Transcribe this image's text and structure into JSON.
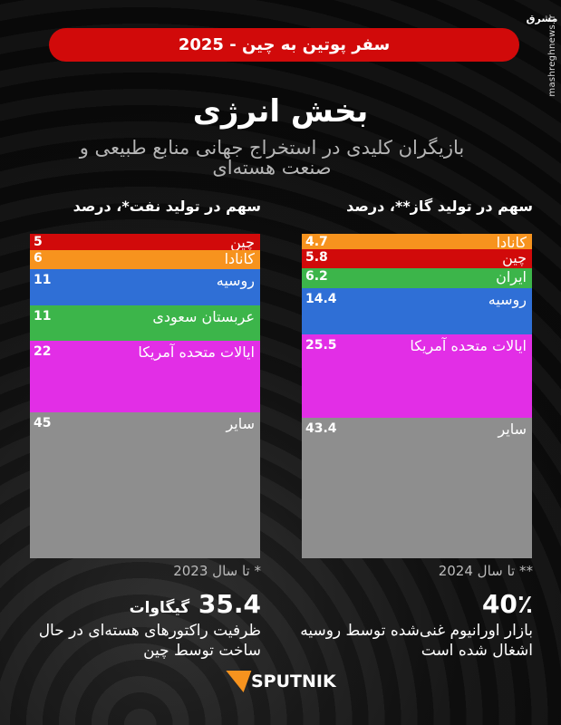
{
  "banner": "سفر پوتین به چین - 2025",
  "logo_text": "مشرق",
  "site": "mashreghnews.ir",
  "title": "بخش انرژی",
  "subtitle": "بازیگران کلیدی در استخراج جهانی منابع طبیعی و صنعت هسته‌ای",
  "chart_data": [
    {
      "type": "bar",
      "stacked": true,
      "title": "سهم در تولید نفت*، درصد",
      "unit": "%",
      "categories": [
        "چین",
        "کانادا",
        "روسیه",
        "عربستان سعودی",
        "ایالات متحده آمریکا",
        "سایر"
      ],
      "values": [
        5,
        6,
        11,
        11,
        22,
        45
      ],
      "colors": [
        "#d10a0a",
        "#f7931e",
        "#2f6fd6",
        "#3cb54a",
        "#e22ee6",
        "#8e8e8e"
      ],
      "footnote": "* تا سال 2023"
    },
    {
      "type": "bar",
      "stacked": true,
      "title": "سهم در تولید گاز**، درصد",
      "unit": "%",
      "categories": [
        "کانادا",
        "چین",
        "ایران",
        "روسیه",
        "ایالات متحده آمریکا",
        "سایر"
      ],
      "values": [
        4.7,
        5.8,
        6.2,
        14.4,
        25.5,
        43.4
      ],
      "colors": [
        "#f7931e",
        "#d10a0a",
        "#3cb54a",
        "#2f6fd6",
        "#e22ee6",
        "#8e8e8e"
      ],
      "footnote": "** تا سال 2024"
    }
  ],
  "facts": {
    "left": {
      "value": "35.4",
      "unit": "گیگاوات",
      "desc": "ظرفیت راکتورهای هسته‌ای در حال ساخت توسط چین"
    },
    "right": {
      "value": "40٪",
      "desc": "بازار اورانیوم غنی‌شده توسط روسیه اشغال شده است"
    }
  },
  "brand": "SPUTNIK"
}
